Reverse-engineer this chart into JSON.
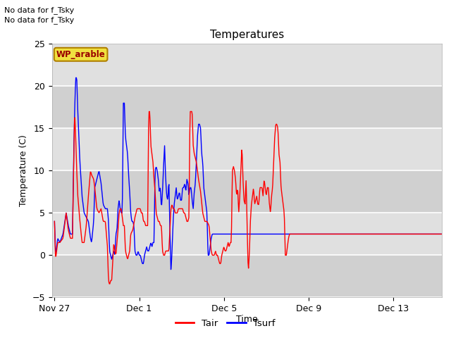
{
  "title": "Temperatures",
  "ylabel": "Temperature (C)",
  "xlabel": "Time",
  "ylim": [
    -5,
    25
  ],
  "yticks": [
    -5,
    0,
    5,
    10,
    15,
    20,
    25
  ],
  "tair_color": "#ff0000",
  "tsurf_color": "#0000ff",
  "no_data_text1": "No data for f_Tsky",
  "no_data_text2": "No data for f_Tsky",
  "wp_label": "WP_arable",
  "legend_tair": "Tair",
  "legend_tsurf": "Tsurf",
  "xtick_labels": [
    "Nov 27",
    "Dec 1",
    "Dec 5",
    "Dec 9",
    "Dec 13"
  ],
  "xtick_offsets_days": [
    0,
    4,
    8,
    12,
    16
  ],
  "band_colors": [
    "#d0d0d0",
    "#e0e0e0",
    "#d0d0d0",
    "#e0e0e0",
    "#d0d0d0",
    "#e0e0e0"
  ],
  "band_ranges": [
    [
      -5,
      0
    ],
    [
      0,
      5
    ],
    [
      5,
      10
    ],
    [
      10,
      15
    ],
    [
      15,
      20
    ],
    [
      20,
      25
    ]
  ],
  "tair_key": [
    [
      0.0,
      4.0
    ],
    [
      0.05,
      -0.5
    ],
    [
      0.15,
      1.5
    ],
    [
      0.25,
      1.5
    ],
    [
      0.4,
      2.0
    ],
    [
      0.55,
      5.0
    ],
    [
      0.65,
      3.0
    ],
    [
      0.75,
      2.0
    ],
    [
      0.85,
      2.0
    ],
    [
      0.9,
      10.0
    ],
    [
      0.95,
      17.0
    ],
    [
      1.0,
      14.0
    ],
    [
      1.05,
      10.0
    ],
    [
      1.1,
      7.0
    ],
    [
      1.2,
      4.0
    ],
    [
      1.3,
      1.5
    ],
    [
      1.4,
      1.5
    ],
    [
      1.5,
      3.5
    ],
    [
      1.6,
      7.0
    ],
    [
      1.7,
      10.0
    ],
    [
      1.75,
      9.5
    ],
    [
      1.85,
      9.0
    ],
    [
      1.9,
      8.0
    ],
    [
      2.0,
      5.5
    ],
    [
      2.1,
      5.0
    ],
    [
      2.2,
      5.5
    ],
    [
      2.3,
      4.0
    ],
    [
      2.4,
      4.0
    ],
    [
      2.5,
      1.0
    ],
    [
      2.55,
      -3.0
    ],
    [
      2.6,
      -3.5
    ],
    [
      2.65,
      -3.0
    ],
    [
      2.7,
      -3.0
    ],
    [
      2.8,
      1.5
    ],
    [
      2.85,
      0.5
    ],
    [
      2.9,
      0.0
    ],
    [
      3.0,
      3.0
    ],
    [
      3.05,
      5.0
    ],
    [
      3.1,
      5.5
    ],
    [
      3.15,
      5.5
    ],
    [
      3.2,
      4.5
    ],
    [
      3.25,
      3.5
    ],
    [
      3.3,
      3.5
    ],
    [
      3.35,
      0.5
    ],
    [
      3.4,
      0.0
    ],
    [
      3.45,
      -0.5
    ],
    [
      3.5,
      0.0
    ],
    [
      3.55,
      0.5
    ],
    [
      3.6,
      2.5
    ],
    [
      3.7,
      3.0
    ],
    [
      3.8,
      4.5
    ],
    [
      3.85,
      5.0
    ],
    [
      3.9,
      5.5
    ],
    [
      3.95,
      5.5
    ],
    [
      4.0,
      5.5
    ],
    [
      4.05,
      5.5
    ],
    [
      4.1,
      5.0
    ],
    [
      4.15,
      5.0
    ],
    [
      4.2,
      4.0
    ],
    [
      4.25,
      4.0
    ],
    [
      4.3,
      3.5
    ],
    [
      4.35,
      3.5
    ],
    [
      4.4,
      3.5
    ],
    [
      4.45,
      17.0
    ],
    [
      4.5,
      17.0
    ],
    [
      4.55,
      13.0
    ],
    [
      4.6,
      12.0
    ],
    [
      4.65,
      11.0
    ],
    [
      4.7,
      9.0
    ],
    [
      4.75,
      7.5
    ],
    [
      4.8,
      5.0
    ],
    [
      4.9,
      4.0
    ],
    [
      4.95,
      4.0
    ],
    [
      5.0,
      3.5
    ],
    [
      5.05,
      3.5
    ],
    [
      5.1,
      0.5
    ],
    [
      5.15,
      0.0
    ],
    [
      5.2,
      0.0
    ],
    [
      5.25,
      0.5
    ],
    [
      5.3,
      0.5
    ],
    [
      5.35,
      0.5
    ],
    [
      5.4,
      0.5
    ],
    [
      5.5,
      5.5
    ],
    [
      5.55,
      6.0
    ],
    [
      5.6,
      5.5
    ],
    [
      5.65,
      5.5
    ],
    [
      5.7,
      5.0
    ],
    [
      5.75,
      5.0
    ],
    [
      5.8,
      5.0
    ],
    [
      5.85,
      5.5
    ],
    [
      5.9,
      5.5
    ],
    [
      5.95,
      5.5
    ],
    [
      6.0,
      5.5
    ],
    [
      6.05,
      5.5
    ],
    [
      6.1,
      5.0
    ],
    [
      6.15,
      5.0
    ],
    [
      6.2,
      4.5
    ],
    [
      6.25,
      4.0
    ],
    [
      6.3,
      4.0
    ],
    [
      6.35,
      4.5
    ],
    [
      6.4,
      17.0
    ],
    [
      6.5,
      17.0
    ],
    [
      6.55,
      13.0
    ],
    [
      6.6,
      12.0
    ],
    [
      6.7,
      11.0
    ],
    [
      6.8,
      9.0
    ],
    [
      6.9,
      7.5
    ],
    [
      7.0,
      5.0
    ],
    [
      7.1,
      4.0
    ],
    [
      7.2,
      4.0
    ],
    [
      7.3,
      3.5
    ],
    [
      7.4,
      0.5
    ],
    [
      7.45,
      0.0
    ],
    [
      7.5,
      0.0
    ],
    [
      7.55,
      0.0
    ],
    [
      7.6,
      0.5
    ],
    [
      7.65,
      0.0
    ],
    [
      7.7,
      0.0
    ],
    [
      7.75,
      -0.5
    ],
    [
      7.8,
      -1.0
    ],
    [
      7.85,
      -1.0
    ],
    [
      7.9,
      0.0
    ],
    [
      7.95,
      0.5
    ],
    [
      8.0,
      1.0
    ],
    [
      8.05,
      0.5
    ],
    [
      8.1,
      0.5
    ],
    [
      8.15,
      1.0
    ],
    [
      8.2,
      1.5
    ],
    [
      8.25,
      1.0
    ],
    [
      8.3,
      1.5
    ],
    [
      8.35,
      1.5
    ],
    [
      8.4,
      10.0
    ],
    [
      8.45,
      10.5
    ],
    [
      8.5,
      10.0
    ],
    [
      8.55,
      9.0
    ],
    [
      8.6,
      7.0
    ],
    [
      8.65,
      8.0
    ],
    [
      8.7,
      5.0
    ],
    [
      8.75,
      7.0
    ],
    [
      8.8,
      10.0
    ],
    [
      8.85,
      13.0
    ],
    [
      8.9,
      9.0
    ],
    [
      8.95,
      6.5
    ],
    [
      9.0,
      6.0
    ],
    [
      9.05,
      9.0
    ],
    [
      9.1,
      3.0
    ],
    [
      9.15,
      -2.0
    ],
    [
      9.2,
      0.0
    ],
    [
      9.25,
      4.0
    ],
    [
      9.3,
      6.0
    ],
    [
      9.35,
      7.0
    ],
    [
      9.4,
      8.0
    ],
    [
      9.45,
      6.0
    ],
    [
      9.5,
      6.5
    ],
    [
      9.55,
      7.0
    ],
    [
      9.6,
      6.0
    ],
    [
      9.65,
      6.0
    ],
    [
      9.7,
      8.0
    ],
    [
      9.75,
      8.0
    ],
    [
      9.8,
      8.0
    ],
    [
      9.85,
      7.0
    ],
    [
      9.9,
      9.0
    ],
    [
      9.95,
      8.0
    ],
    [
      10.0,
      7.0
    ],
    [
      10.05,
      8.0
    ],
    [
      10.1,
      8.0
    ],
    [
      10.15,
      6.0
    ],
    [
      10.2,
      5.0
    ],
    [
      10.25,
      7.0
    ],
    [
      10.3,
      8.0
    ],
    [
      10.35,
      11.0
    ],
    [
      10.4,
      14.0
    ],
    [
      10.45,
      15.5
    ],
    [
      10.5,
      15.5
    ],
    [
      10.55,
      15.0
    ],
    [
      10.6,
      12.0
    ],
    [
      10.65,
      11.0
    ],
    [
      10.7,
      8.0
    ],
    [
      10.75,
      7.0
    ],
    [
      10.8,
      6.0
    ],
    [
      10.85,
      5.0
    ],
    [
      10.9,
      0.0
    ],
    [
      10.95,
      0.0
    ],
    [
      11.0,
      1.0
    ],
    [
      11.05,
      2.0
    ],
    [
      11.1,
      2.5
    ],
    [
      11.15,
      2.5
    ],
    [
      11.2,
      2.5
    ]
  ],
  "tsurf_key": [
    [
      0.0,
      4.0
    ],
    [
      0.05,
      0.0
    ],
    [
      0.15,
      2.0
    ],
    [
      0.25,
      1.5
    ],
    [
      0.4,
      2.5
    ],
    [
      0.55,
      5.0
    ],
    [
      0.65,
      3.5
    ],
    [
      0.75,
      2.5
    ],
    [
      0.85,
      2.5
    ],
    [
      0.9,
      11.0
    ],
    [
      0.95,
      17.0
    ],
    [
      1.0,
      21.0
    ],
    [
      1.05,
      21.0
    ],
    [
      1.1,
      17.0
    ],
    [
      1.2,
      11.0
    ],
    [
      1.3,
      7.0
    ],
    [
      1.4,
      5.0
    ],
    [
      1.5,
      4.5
    ],
    [
      1.6,
      4.0
    ],
    [
      1.7,
      2.0
    ],
    [
      1.75,
      1.5
    ],
    [
      1.85,
      4.0
    ],
    [
      1.9,
      8.0
    ],
    [
      2.0,
      9.0
    ],
    [
      2.1,
      10.0
    ],
    [
      2.2,
      8.5
    ],
    [
      2.3,
      6.0
    ],
    [
      2.4,
      5.5
    ],
    [
      2.5,
      5.5
    ],
    [
      2.55,
      4.0
    ],
    [
      2.6,
      0.5
    ],
    [
      2.65,
      0.0
    ],
    [
      2.7,
      -0.5
    ],
    [
      2.75,
      0.0
    ],
    [
      2.8,
      0.5
    ],
    [
      2.85,
      0.0
    ],
    [
      2.9,
      2.5
    ],
    [
      2.95,
      3.0
    ],
    [
      3.0,
      5.5
    ],
    [
      3.05,
      6.5
    ],
    [
      3.1,
      5.5
    ],
    [
      3.15,
      5.0
    ],
    [
      3.2,
      5.0
    ],
    [
      3.25,
      18.0
    ],
    [
      3.3,
      18.0
    ],
    [
      3.35,
      14.0
    ],
    [
      3.4,
      13.0
    ],
    [
      3.45,
      12.0
    ],
    [
      3.5,
      9.5
    ],
    [
      3.55,
      7.5
    ],
    [
      3.6,
      5.0
    ],
    [
      3.65,
      4.0
    ],
    [
      3.7,
      4.0
    ],
    [
      3.75,
      3.5
    ],
    [
      3.8,
      0.5
    ],
    [
      3.85,
      0.0
    ],
    [
      3.9,
      0.0
    ],
    [
      3.95,
      0.5
    ],
    [
      4.0,
      0.0
    ],
    [
      4.05,
      0.0
    ],
    [
      4.1,
      -0.5
    ],
    [
      4.15,
      -1.0
    ],
    [
      4.2,
      -1.0
    ],
    [
      4.25,
      0.0
    ],
    [
      4.3,
      0.5
    ],
    [
      4.35,
      1.0
    ],
    [
      4.4,
      0.5
    ],
    [
      4.45,
      0.5
    ],
    [
      4.5,
      1.0
    ],
    [
      4.55,
      1.5
    ],
    [
      4.6,
      1.0
    ],
    [
      4.65,
      1.5
    ],
    [
      4.7,
      1.5
    ],
    [
      4.75,
      10.0
    ],
    [
      4.8,
      10.5
    ],
    [
      4.85,
      10.0
    ],
    [
      4.9,
      9.0
    ],
    [
      4.95,
      7.5
    ],
    [
      5.0,
      8.0
    ],
    [
      5.05,
      5.5
    ],
    [
      5.1,
      7.5
    ],
    [
      5.15,
      10.5
    ],
    [
      5.2,
      13.0
    ],
    [
      5.25,
      9.0
    ],
    [
      5.3,
      7.0
    ],
    [
      5.35,
      6.5
    ],
    [
      5.4,
      9.0
    ],
    [
      5.45,
      3.0
    ],
    [
      5.5,
      -2.0
    ],
    [
      5.55,
      0.5
    ],
    [
      5.6,
      4.0
    ],
    [
      5.65,
      6.0
    ],
    [
      5.7,
      7.0
    ],
    [
      5.75,
      8.0
    ],
    [
      5.8,
      6.5
    ],
    [
      5.85,
      7.0
    ],
    [
      5.9,
      7.5
    ],
    [
      5.95,
      6.5
    ],
    [
      6.0,
      6.5
    ],
    [
      6.05,
      8.0
    ],
    [
      6.1,
      8.0
    ],
    [
      6.15,
      8.5
    ],
    [
      6.2,
      7.5
    ],
    [
      6.25,
      9.0
    ],
    [
      6.3,
      8.5
    ],
    [
      6.35,
      7.0
    ],
    [
      6.4,
      8.0
    ],
    [
      6.45,
      8.0
    ],
    [
      6.5,
      6.5
    ],
    [
      6.55,
      5.5
    ],
    [
      6.6,
      7.5
    ],
    [
      6.65,
      8.5
    ],
    [
      6.7,
      11.0
    ],
    [
      6.75,
      14.0
    ],
    [
      6.8,
      15.5
    ],
    [
      6.85,
      15.5
    ],
    [
      6.9,
      15.0
    ],
    [
      6.95,
      12.0
    ],
    [
      7.0,
      11.0
    ],
    [
      7.05,
      8.0
    ],
    [
      7.1,
      7.0
    ],
    [
      7.15,
      6.0
    ],
    [
      7.2,
      5.0
    ],
    [
      7.25,
      0.0
    ],
    [
      7.3,
      0.0
    ],
    [
      7.35,
      1.0
    ],
    [
      7.4,
      2.0
    ],
    [
      7.45,
      2.5
    ],
    [
      7.5,
      2.5
    ],
    [
      7.55,
      2.5
    ]
  ]
}
